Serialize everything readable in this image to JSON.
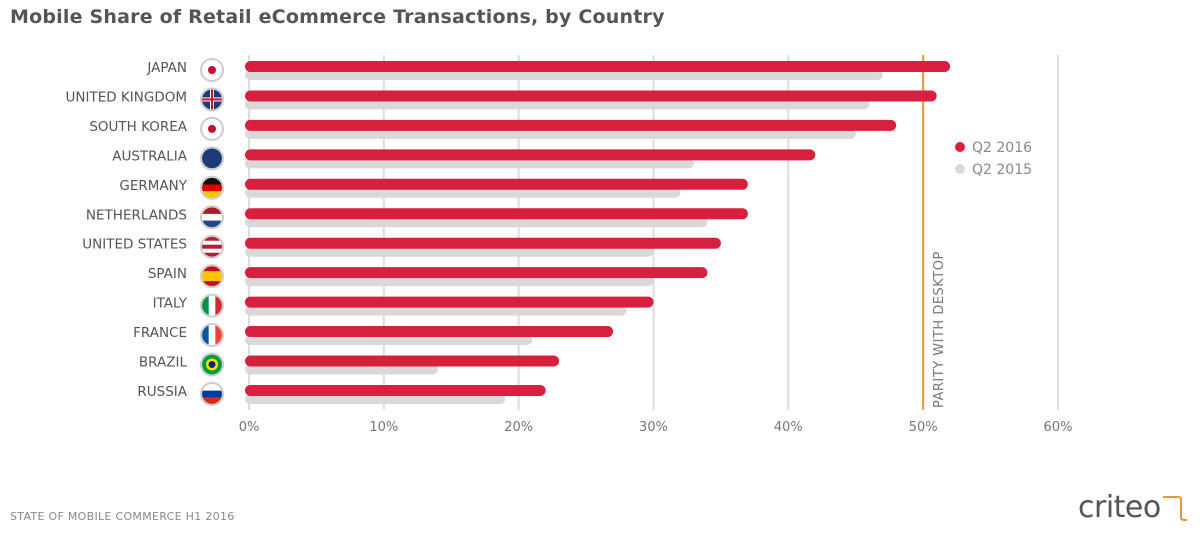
{
  "title": "Mobile Share of Retail eCommerce Transactions, by Country",
  "footer": "STATE OF MOBILE COMMERCE H1 2016",
  "logo": "criteo",
  "colors": {
    "q2_2016": "#d6203e",
    "q2_2015": "#d9d9d9",
    "parity": "#e8963a",
    "grid": "#dddddd"
  },
  "chart_data": {
    "type": "bar",
    "orientation": "horizontal",
    "title": "Mobile Share of Retail eCommerce Transactions, by Country",
    "categories": [
      "JAPAN",
      "UNITED KINGDOM",
      "SOUTH KOREA",
      "AUSTRALIA",
      "GERMANY",
      "NETHERLANDS",
      "UNITED STATES",
      "SPAIN",
      "ITALY",
      "FRANCE",
      "BRAZIL",
      "RUSSIA"
    ],
    "flag_icons": [
      "japan-flag-icon",
      "uk-flag-icon",
      "south-korea-flag-icon",
      "australia-flag-icon",
      "germany-flag-icon",
      "netherlands-flag-icon",
      "us-flag-icon",
      "spain-flag-icon",
      "italy-flag-icon",
      "france-flag-icon",
      "brazil-flag-icon",
      "russia-flag-icon"
    ],
    "series": [
      {
        "name": "Q2 2016",
        "values": [
          52,
          51,
          48,
          42,
          37,
          37,
          35,
          34,
          30,
          27,
          23,
          22
        ]
      },
      {
        "name": "Q2 2015",
        "values": [
          47,
          46,
          45,
          33,
          32,
          34,
          30,
          30,
          28,
          21,
          14,
          19
        ]
      }
    ],
    "xlim": [
      0,
      60
    ],
    "xticks": [
      "0%",
      "10%",
      "20%",
      "30%",
      "40%",
      "50%",
      "60%"
    ],
    "grid": true,
    "legend": "right",
    "reference_line": {
      "value": 50,
      "label": "PARITY WITH DESKTOP"
    }
  }
}
